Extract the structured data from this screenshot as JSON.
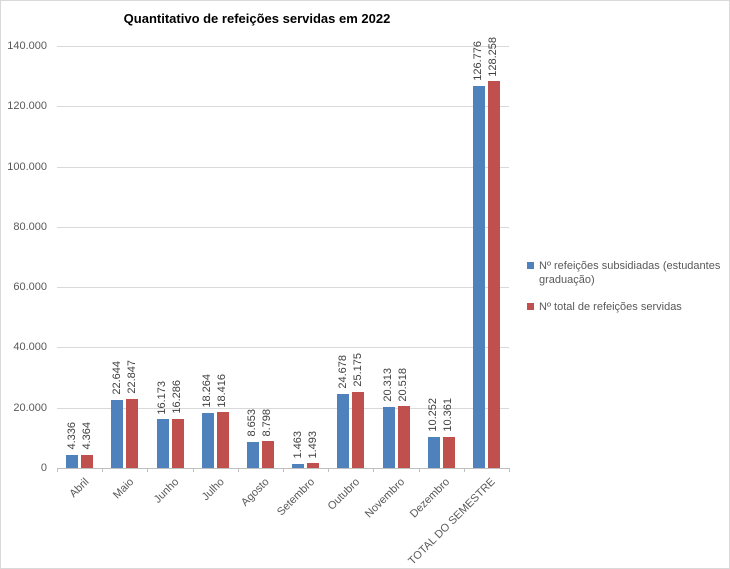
{
  "chart_data": {
    "type": "bar",
    "title": "Quantitativo de refeições servidas em 2022",
    "xlabel": "",
    "ylabel": "",
    "grid": true,
    "legend_position": "right",
    "ylim": [
      0,
      140000
    ],
    "yticks": [
      {
        "value": 0,
        "label": "0"
      },
      {
        "value": 20000,
        "label": "20.000"
      },
      {
        "value": 40000,
        "label": "40.000"
      },
      {
        "value": 60000,
        "label": "60.000"
      },
      {
        "value": 80000,
        "label": "80.000"
      },
      {
        "value": 100000,
        "label": "100.000"
      },
      {
        "value": 120000,
        "label": "120.000"
      },
      {
        "value": 140000,
        "label": "140.000"
      }
    ],
    "categories": [
      "Abril",
      "Maio",
      "Junho",
      "Julho",
      "Agosto",
      "Setembro",
      "Outubro",
      "Novembro",
      "Dezembro",
      "TOTAL DO SEMESTRE"
    ],
    "series": [
      {
        "name": "Nº refeições subsidiadas (estudantes graduação)",
        "color": "#4F81BD",
        "values": [
          4336,
          22644,
          16173,
          18264,
          8653,
          1463,
          24678,
          20313,
          10252,
          126776
        ],
        "labels": [
          "4.336",
          "22.644",
          "16.173",
          "18.264",
          "8.653",
          "1.463",
          "24.678",
          "20.313",
          "10.252",
          "126.776"
        ]
      },
      {
        "name": "Nº total de refeições servidas",
        "color": "#C0504D",
        "values": [
          4364,
          22847,
          16286,
          18416,
          8798,
          1493,
          25175,
          20518,
          10361,
          128258
        ],
        "labels": [
          "4.364",
          "22.847",
          "16.286",
          "18.416",
          "8.798",
          "1.493",
          "25.175",
          "20.518",
          "10.361",
          "128.258"
        ]
      }
    ]
  },
  "colors": {
    "background": "#FFFFFF",
    "border": "#D9D9D9",
    "gridline": "#D9D9D9",
    "axis": "#BFBFBF",
    "tick_text": "#595959",
    "data_label": "#3F3F3F"
  }
}
